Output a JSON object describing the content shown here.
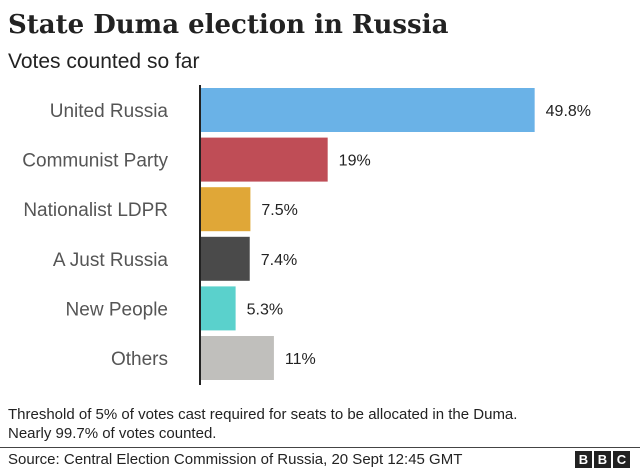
{
  "chart_data": {
    "type": "bar",
    "orientation": "horizontal",
    "title": "State Duma election in Russia",
    "subtitle": "Votes counted so far",
    "categories": [
      "United Russia",
      "Communist Party",
      "Nationalist LDPR",
      "A Just Russia",
      "New People",
      "Others"
    ],
    "values": [
      49.8,
      19,
      7.5,
      7.4,
      5.3,
      11
    ],
    "value_labels": [
      "49.8%",
      "19%",
      "7.5%",
      "7.4%",
      "5.3%",
      "11%"
    ],
    "colors": [
      "#6ab2e7",
      "#bf4d56",
      "#e0a737",
      "#4a4a4a",
      "#5ad1cc",
      "#c0bfbc"
    ],
    "xlim": [
      0,
      50
    ],
    "xlabel": "",
    "ylabel": "",
    "grid": false
  },
  "notes": {
    "line1": "Threshold of 5% of votes cast required for seats to be allocated in the Duma.",
    "line2": "Nearly 99.7% of votes counted."
  },
  "source": "Source: Central Election Commission of Russia, 20 Sept 12:45 GMT",
  "logo": [
    "B",
    "B",
    "C"
  ]
}
